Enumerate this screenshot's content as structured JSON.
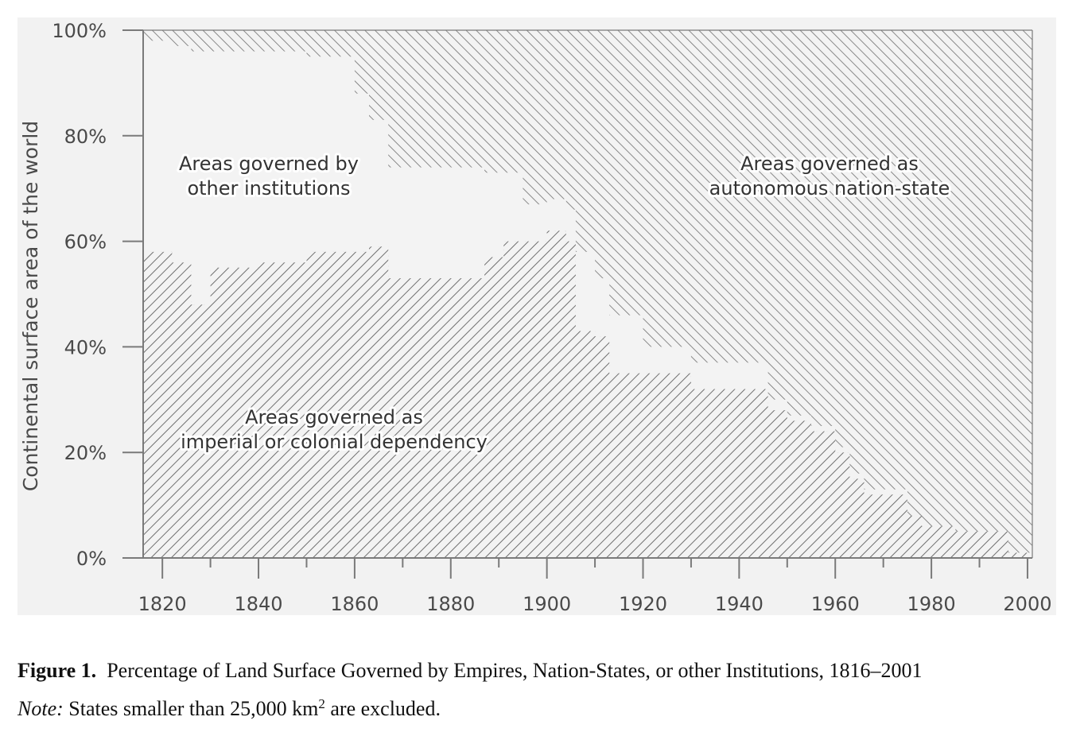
{
  "chart_data": {
    "type": "area",
    "ylabel": "Continental surface area of the world",
    "x_ticks": [
      1820,
      1840,
      1860,
      1880,
      1900,
      1920,
      1940,
      1960,
      1980,
      2000
    ],
    "y_ticks": [
      "0%",
      "20%",
      "40%",
      "60%",
      "80%",
      "100%"
    ],
    "xlim": [
      1816,
      2001
    ],
    "ylim": [
      0,
      100
    ],
    "x": [
      1816,
      1820,
      1822,
      1826,
      1830,
      1840,
      1850,
      1860,
      1863,
      1867,
      1870,
      1880,
      1887,
      1891,
      1895,
      1900,
      1904,
      1906,
      1910,
      1913,
      1920,
      1930,
      1935,
      1940,
      1946,
      1950,
      1955,
      1960,
      1963,
      1966,
      1975,
      1978,
      1985,
      1991,
      1996,
      2001
    ],
    "series": [
      {
        "key": "imperial",
        "values": [
          58,
          58,
          56,
          48,
          55,
          56,
          58,
          58,
          59,
          53,
          53,
          53,
          57,
          60,
          60,
          62,
          60,
          43,
          42,
          35,
          35,
          32,
          32,
          32,
          28,
          26,
          24,
          20,
          15,
          12,
          8,
          6,
          5,
          5,
          1,
          1
        ]
      },
      {
        "key": "other",
        "values": [
          40,
          40,
          41,
          48,
          41,
          40,
          37,
          30,
          24,
          21,
          21,
          21,
          16,
          13,
          7,
          6,
          6,
          15,
          11,
          11,
          5,
          5,
          5,
          5,
          2,
          1,
          1,
          1,
          1,
          1,
          0,
          0,
          0,
          0,
          0,
          0
        ]
      },
      {
        "key": "nation",
        "values": [
          2,
          2,
          3,
          4,
          4,
          4,
          5,
          12,
          17,
          26,
          26,
          26,
          27,
          27,
          33,
          32,
          34,
          42,
          47,
          54,
          60,
          63,
          63,
          63,
          70,
          73,
          75,
          79,
          84,
          87,
          92,
          94,
          95,
          95,
          99,
          99
        ]
      }
    ],
    "region_labels": {
      "other": [
        "Areas governed by",
        "other institutions"
      ],
      "nation": [
        "Areas governed as",
        "autonomous nation-state"
      ],
      "imperial": [
        "Areas governed as",
        "imperial or colonial dependency"
      ]
    },
    "colors": {
      "hatch": "#6f6f6f",
      "region_fill": "#f3f3f3",
      "axis": "#7a7a7a",
      "label_bg": "#ffffff"
    }
  },
  "caption": {
    "figure_label": "Figure 1.",
    "text": "Percentage of Land Surface Governed by Empires, Nation-States, or other Institutions, 1816–2001",
    "note_label": "Note:",
    "note_text": "States smaller than 25,000 km",
    "note_sup": "2",
    "note_end": " are excluded."
  }
}
